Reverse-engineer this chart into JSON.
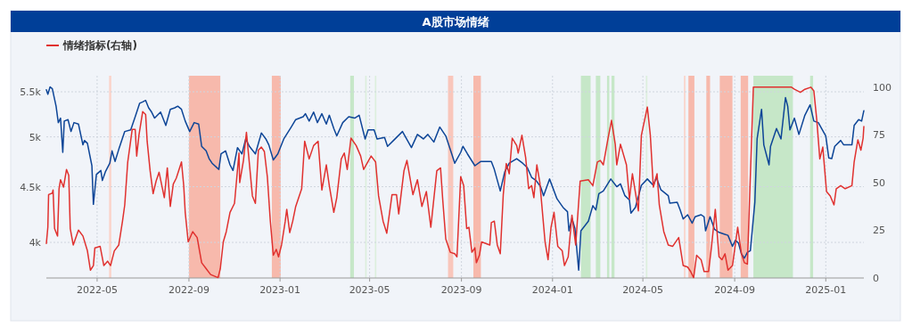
{
  "chart_data": {
    "type": "line",
    "title": "A股市场情绪",
    "log": "y",
    "grid": true,
    "legend": "top left",
    "xlim": [
      "2022-02-22",
      "2025-02-21"
    ],
    "xticks": [
      "2022-05",
      "2022-09",
      "2023-01",
      "2023-05",
      "2023-09",
      "2024-01",
      "2024-05",
      "2024-09",
      "2025-01"
    ],
    "ylim": [
      3710,
      5690
    ],
    "yticks": [
      {
        "value": 4000,
        "label": "4k"
      },
      {
        "value": 4500,
        "label": "4.5k"
      },
      {
        "value": 5000,
        "label": "5k"
      },
      {
        "value": 5500,
        "label": "5.5k"
      }
    ],
    "y2lim": [
      0,
      106
    ],
    "y2ticks": [
      0,
      25,
      50,
      75,
      100
    ],
    "bands": [
      {
        "axis": "x",
        "from": "2022-05-17",
        "to": "2022-05-20",
        "color": "#fbd3ca"
      },
      {
        "axis": "x",
        "from": "2022-09-01",
        "to": "2022-10-13",
        "color": "#f7b9ac"
      },
      {
        "axis": "x",
        "from": "2022-12-21",
        "to": "2023-01-02",
        "color": "#f7b9ac"
      },
      {
        "axis": "x",
        "from": "2023-04-05",
        "to": "2023-04-10",
        "color": "#c6e7c8"
      },
      {
        "axis": "x",
        "from": "2023-04-25",
        "to": "2023-04-27",
        "color": "#dcefdd"
      },
      {
        "axis": "x",
        "from": "2023-05-08",
        "to": "2023-05-10",
        "color": "#dcefdd"
      },
      {
        "axis": "x",
        "from": "2023-08-14",
        "to": "2023-08-21",
        "color": "#f9c6bb"
      },
      {
        "axis": "x",
        "from": "2023-09-17",
        "to": "2023-09-27",
        "color": "#f7b9ac"
      },
      {
        "axis": "x",
        "from": "2024-02-08",
        "to": "2024-02-21",
        "color": "#c6e7c8"
      },
      {
        "axis": "x",
        "from": "2024-02-28",
        "to": "2024-03-05",
        "color": "#c6e7c8"
      },
      {
        "axis": "x",
        "from": "2024-03-14",
        "to": "2024-03-17",
        "color": "#c6e7c8"
      },
      {
        "axis": "x",
        "from": "2024-03-20",
        "to": "2024-03-24",
        "color": "#c6e7c8"
      },
      {
        "axis": "x",
        "from": "2024-05-05",
        "to": "2024-05-07",
        "color": "#dcefdd"
      },
      {
        "axis": "x",
        "from": "2024-06-25",
        "to": "2024-06-27",
        "color": "#fbd3ca"
      },
      {
        "axis": "x",
        "from": "2024-07-01",
        "to": "2024-07-09",
        "color": "#f7b9ac"
      },
      {
        "axis": "x",
        "from": "2024-07-25",
        "to": "2024-07-30",
        "color": "#f7b9ac"
      },
      {
        "axis": "x",
        "from": "2024-08-12",
        "to": "2024-08-29",
        "color": "#f7b9ac"
      },
      {
        "axis": "x",
        "from": "2024-09-09",
        "to": "2024-09-19",
        "color": "#f7b9ac"
      },
      {
        "axis": "x",
        "from": "2024-09-26",
        "to": "2024-11-18",
        "color": "#c6e7c8"
      },
      {
        "axis": "x",
        "from": "2024-12-11",
        "to": "2024-12-15",
        "color": "#c6e7c8"
      }
    ],
    "series": [
      {
        "color": "#0d4597",
        "x": [
          "2022-02-22",
          "2022-02-24",
          "2022-02-27",
          "2022-03-02",
          "2022-03-07",
          "2022-03-10",
          "2022-03-13",
          "2022-03-16",
          "2022-03-18",
          "2022-03-23",
          "2022-03-27",
          "2022-03-31",
          "2022-04-06",
          "2022-04-12",
          "2022-04-14",
          "2022-04-18",
          "2022-04-24",
          "2022-04-26",
          "2022-04-30",
          "2022-05-06",
          "2022-05-08",
          "2022-05-12",
          "2022-05-18",
          "2022-05-21",
          "2022-05-25",
          "2022-05-30",
          "2022-06-07",
          "2022-06-15",
          "2022-06-21",
          "2022-06-27",
          "2022-07-01",
          "2022-07-05",
          "2022-07-09",
          "2022-07-13",
          "2022-07-17",
          "2022-07-25",
          "2022-08-01",
          "2022-08-07",
          "2022-08-13",
          "2022-08-17",
          "2022-08-22",
          "2022-08-27",
          "2022-09-02",
          "2022-09-08",
          "2022-09-14",
          "2022-09-18",
          "2022-09-24",
          "2022-09-28",
          "2022-10-02",
          "2022-10-11",
          "2022-10-14",
          "2022-10-20",
          "2022-10-26",
          "2022-10-30",
          "2022-11-05",
          "2022-11-11",
          "2022-11-16",
          "2022-11-21",
          "2022-11-29",
          "2022-12-07",
          "2022-12-13",
          "2022-12-17",
          "2022-12-23",
          "2022-12-29",
          "2023-01-06",
          "2023-01-16",
          "2023-01-22",
          "2023-02-01",
          "2023-02-04",
          "2023-02-09",
          "2023-02-15",
          "2023-02-20",
          "2023-02-26",
          "2023-03-04",
          "2023-03-08",
          "2023-03-14",
          "2023-03-18",
          "2023-03-26",
          "2023-04-03",
          "2023-04-11",
          "2023-04-17",
          "2023-04-25",
          "2023-04-29",
          "2023-05-07",
          "2023-05-11",
          "2023-05-21",
          "2023-05-25",
          "2023-06-02",
          "2023-06-14",
          "2023-06-26",
          "2023-07-04",
          "2023-07-12",
          "2023-07-18",
          "2023-07-26",
          "2023-08-03",
          "2023-08-11",
          "2023-08-19",
          "2023-08-23",
          "2023-08-31",
          "2023-09-03",
          "2023-09-09",
          "2023-09-19",
          "2023-09-27",
          "2023-10-11",
          "2023-10-15",
          "2023-10-23",
          "2023-10-29",
          "2023-11-04",
          "2023-11-14",
          "2023-11-22",
          "2023-11-28",
          "2023-12-04",
          "2023-12-10",
          "2023-12-16",
          "2023-12-20",
          "2023-12-28",
          "2024-01-07",
          "2024-01-15",
          "2024-01-21",
          "2024-01-23",
          "2024-01-27",
          "2024-01-31",
          "2024-02-05",
          "2024-02-08",
          "2024-02-18",
          "2024-02-24",
          "2024-02-28",
          "2024-03-03",
          "2024-03-09",
          "2024-03-19",
          "2024-03-27",
          "2024-04-01",
          "2024-04-07",
          "2024-04-13",
          "2024-04-15",
          "2024-04-21",
          "2024-04-29",
          "2024-05-07",
          "2024-05-15",
          "2024-05-19",
          "2024-05-25",
          "2024-06-04",
          "2024-06-06",
          "2024-06-16",
          "2024-06-20",
          "2024-06-24",
          "2024-06-30",
          "2024-07-06",
          "2024-07-10",
          "2024-07-18",
          "2024-07-22",
          "2024-07-24",
          "2024-07-30",
          "2024-08-05",
          "2024-08-11",
          "2024-08-17",
          "2024-08-23",
          "2024-08-29",
          "2024-09-02",
          "2024-09-06",
          "2024-09-10",
          "2024-09-14",
          "2024-09-18",
          "2024-09-22",
          "2024-09-28",
          "2024-10-01",
          "2024-10-07",
          "2024-10-10",
          "2024-10-17",
          "2024-10-19",
          "2024-10-27",
          "2024-11-02",
          "2024-11-08",
          "2024-11-11",
          "2024-11-14",
          "2024-11-20",
          "2024-11-26",
          "2024-12-04",
          "2024-12-11",
          "2024-12-16",
          "2024-12-22",
          "2025-01-01",
          "2025-01-05",
          "2025-01-09",
          "2025-01-13",
          "2025-01-21",
          "2025-01-25",
          "2025-02-05",
          "2025-02-08",
          "2025-02-14",
          "2025-02-18",
          "2025-02-21"
        ],
        "values": [
          5523,
          5471,
          5557,
          5535,
          5335,
          5153,
          5202,
          4839,
          5170,
          5186,
          5057,
          5153,
          5137,
          4916,
          4962,
          4932,
          4704,
          4335,
          4617,
          4657,
          4559,
          4643,
          4729,
          4854,
          4747,
          4870,
          5057,
          5074,
          5217,
          5369,
          5384,
          5401,
          5317,
          5269,
          5202,
          5269,
          5122,
          5300,
          5317,
          5335,
          5300,
          5170,
          5057,
          5153,
          5137,
          4901,
          4854,
          4775,
          4729,
          4668,
          4823,
          4854,
          4713,
          4657,
          4888,
          4823,
          4978,
          4901,
          4823,
          5042,
          4978,
          4916,
          4762,
          4823,
          4978,
          5105,
          5186,
          5217,
          5251,
          5170,
          5269,
          5153,
          5251,
          5137,
          5234,
          5089,
          5010,
          5153,
          5217,
          5202,
          5234,
          4978,
          5074,
          5074,
          4978,
          4994,
          4901,
          4962,
          5057,
          4888,
          5026,
          4978,
          5026,
          4946,
          5105,
          5010,
          4823,
          4729,
          4839,
          4901,
          4823,
          4704,
          4747,
          4747,
          4668,
          4459,
          4643,
          4729,
          4775,
          4729,
          4687,
          4590,
          4559,
          4500,
          4415,
          4574,
          4386,
          4308,
          4268,
          4099,
          4210,
          4120,
          3772,
          4099,
          4183,
          4323,
          4284,
          4434,
          4459,
          4574,
          4500,
          4527,
          4415,
          4375,
          4255,
          4308,
          4513,
          4574,
          4513,
          4590,
          4472,
          4415,
          4347,
          4355,
          4284,
          4203,
          4241,
          4166,
          4223,
          4241,
          4223,
          4099,
          4223,
          4112,
          4086,
          4073,
          4060,
          3967,
          4019,
          3994,
          3905,
          3869,
          3917,
          3930,
          4355,
          4978,
          5300,
          4916,
          4713,
          4901,
          5089,
          4978,
          5433,
          5335,
          5074,
          5202,
          5026,
          5234,
          5350,
          5170,
          5153,
          5010,
          4783,
          4775,
          4901,
          4962,
          4916,
          4916,
          5122,
          5186,
          5170,
          5285
        ]
      },
      {
        "name": "情绪指标(右轴)",
        "axis": "y2",
        "color": "#e0312f",
        "x": [
          "2022-02-22",
          "2022-02-24",
          "2022-02-25",
          "2022-03-02",
          "2022-03-03",
          "2022-03-05",
          "2022-03-09",
          "2022-03-11",
          "2022-03-13",
          "2022-03-17",
          "2022-03-21",
          "2022-03-24",
          "2022-03-26",
          "2022-03-30",
          "2022-04-06",
          "2022-04-12",
          "2022-04-18",
          "2022-04-22",
          "2022-04-26",
          "2022-04-28",
          "2022-05-05",
          "2022-05-10",
          "2022-05-15",
          "2022-05-19",
          "2022-05-24",
          "2022-05-30",
          "2022-06-04",
          "2022-06-07",
          "2022-06-11",
          "2022-06-17",
          "2022-06-21",
          "2022-06-23",
          "2022-06-26",
          "2022-07-01",
          "2022-07-05",
          "2022-07-07",
          "2022-07-11",
          "2022-07-15",
          "2022-07-19",
          "2022-07-23",
          "2022-07-30",
          "2022-08-03",
          "2022-08-07",
          "2022-08-11",
          "2022-08-15",
          "2022-08-22",
          "2022-08-25",
          "2022-08-27",
          "2022-08-31",
          "2022-09-06",
          "2022-09-12",
          "2022-09-18",
          "2022-09-24",
          "2022-09-30",
          "2022-10-10",
          "2022-10-13",
          "2022-10-17",
          "2022-10-21",
          "2022-10-26",
          "2022-11-01",
          "2022-11-07",
          "2022-11-08",
          "2022-11-13",
          "2022-11-17",
          "2022-11-20",
          "2022-11-25",
          "2022-11-29",
          "2022-12-03",
          "2022-12-07",
          "2022-12-11",
          "2022-12-15",
          "2022-12-19",
          "2022-12-23",
          "2022-12-27",
          "2022-12-30",
          "2023-01-03",
          "2023-01-08",
          "2023-01-10",
          "2023-01-14",
          "2023-01-18",
          "2023-01-22",
          "2023-01-30",
          "2023-02-03",
          "2023-02-09",
          "2023-02-15",
          "2023-02-21",
          "2023-02-26",
          "2023-03-04",
          "2023-03-08",
          "2023-03-14",
          "2023-03-18",
          "2023-03-24",
          "2023-03-28",
          "2023-04-01",
          "2023-04-06",
          "2023-04-13",
          "2023-04-19",
          "2023-04-23",
          "2023-05-03",
          "2023-05-09",
          "2023-05-13",
          "2023-05-19",
          "2023-05-24",
          "2023-05-31",
          "2023-06-06",
          "2023-06-09",
          "2023-06-16",
          "2023-06-20",
          "2023-06-28",
          "2023-07-04",
          "2023-07-10",
          "2023-07-16",
          "2023-07-22",
          "2023-07-30",
          "2023-08-04",
          "2023-08-07",
          "2023-08-11",
          "2023-08-17",
          "2023-08-23",
          "2023-08-26",
          "2023-08-31",
          "2023-09-04",
          "2023-09-08",
          "2023-09-11",
          "2023-09-15",
          "2023-09-19",
          "2023-09-21",
          "2023-09-25",
          "2023-09-28",
          "2023-10-09",
          "2023-10-11",
          "2023-10-15",
          "2023-10-19",
          "2023-10-23",
          "2023-10-27",
          "2023-10-31",
          "2023-11-04",
          "2023-11-08",
          "2023-11-14",
          "2023-11-16",
          "2023-11-21",
          "2023-11-26",
          "2023-11-30",
          "2023-12-04",
          "2023-12-07",
          "2023-12-11",
          "2023-12-15",
          "2023-12-22",
          "2023-12-26",
          "2023-12-30",
          "2024-01-03",
          "2024-01-08",
          "2024-01-14",
          "2024-01-17",
          "2024-01-22",
          "2024-01-27",
          "2024-02-01",
          "2024-02-07",
          "2024-02-18",
          "2024-02-24",
          "2024-03-01",
          "2024-03-05",
          "2024-03-09",
          "2024-03-15",
          "2024-03-20",
          "2024-03-25",
          "2024-03-27",
          "2024-04-01",
          "2024-04-09",
          "2024-04-13",
          "2024-04-17",
          "2024-04-25",
          "2024-04-29",
          "2024-05-07",
          "2024-05-11",
          "2024-05-15",
          "2024-05-20",
          "2024-05-23",
          "2024-05-29",
          "2024-06-04",
          "2024-06-10",
          "2024-06-18",
          "2024-06-24",
          "2024-06-30",
          "2024-07-04",
          "2024-07-08",
          "2024-07-12",
          "2024-07-18",
          "2024-07-22",
          "2024-07-28",
          "2024-08-01",
          "2024-08-06",
          "2024-08-11",
          "2024-08-15",
          "2024-08-19",
          "2024-08-23",
          "2024-08-29",
          "2024-09-05",
          "2024-09-10",
          "2024-09-14",
          "2024-09-18",
          "2024-09-26",
          "2024-11-16",
          "2024-11-20",
          "2024-11-28",
          "2024-12-04",
          "2024-12-12",
          "2024-12-16",
          "2024-12-20",
          "2024-12-24",
          "2024-12-28",
          "2025-01-02",
          "2025-01-07",
          "2025-01-12",
          "2025-01-15",
          "2025-01-21",
          "2025-01-27",
          "2025-02-05",
          "2025-02-08",
          "2025-02-13",
          "2025-02-17",
          "2025-02-20",
          "2025-02-21"
        ],
        "values": [
          18.1,
          26.6,
          43.7,
          44.5,
          46.1,
          25.9,
          22.0,
          46.8,
          51.5,
          47.6,
          56.9,
          53.8,
          25.9,
          17.3,
          25.1,
          22.0,
          14.2,
          4.1,
          6.5,
          15.8,
          16.6,
          6.5,
          8.8,
          6.5,
          14.2,
          17.3,
          29.8,
          38.3,
          60.8,
          77.9,
          77.9,
          63.9,
          74.8,
          87.2,
          85.7,
          71.7,
          56.2,
          44.2,
          50.8,
          55.4,
          42.1,
          57.7,
          37.5,
          49.2,
          52.3,
          60.8,
          48.4,
          34.4,
          18.9,
          24.3,
          21.2,
          8.0,
          4.9,
          1.8,
          0.2,
          4.9,
          18.9,
          24.3,
          34.4,
          39.1,
          65.5,
          50.0,
          61.6,
          76.3,
          63.9,
          43.0,
          39.1,
          67.0,
          68.6,
          66.3,
          53.1,
          29.8,
          11.9,
          15.0,
          11.1,
          17.3,
          29.8,
          36.0,
          23.8,
          29.8,
          37.5,
          46.8,
          71.7,
          62.4,
          69.4,
          71.7,
          46.1,
          59.3,
          48.4,
          34.4,
          42.1,
          62.4,
          65.5,
          56.9,
          73.3,
          69.4,
          63.9,
          56.9,
          63.9,
          60.8,
          43.0,
          29.8,
          23.5,
          43.7,
          43.7,
          33.6,
          56.2,
          61.6,
          43.7,
          51.5,
          37.5,
          45.3,
          26.6,
          56.2,
          57.7,
          40.6,
          20.4,
          13.5,
          12.7,
          11.1,
          53.1,
          48.4,
          25.9,
          26.6,
          13.5,
          15.8,
          8.0,
          11.9,
          18.9,
          17.3,
          29.0,
          29.8,
          17.3,
          12.7,
          43.7,
          60.0,
          54.6,
          73.3,
          69.4,
          65.5,
          74.8,
          63.1,
          46.8,
          48.4,
          42.1,
          59.3,
          50.0,
          18.9,
          9.6,
          26.6,
          34.4,
          16.6,
          14.2,
          6.5,
          11.1,
          32.9,
          17.3,
          50.8,
          51.5,
          48.4,
          60.8,
          61.6,
          59.3,
          72.4,
          82.6,
          70.1,
          59.3,
          70.1,
          59.3,
          41.4,
          54.6,
          35.2,
          74.8,
          89.6,
          74.8,
          47.6,
          54.6,
          38.3,
          24.3,
          17.3,
          16.6,
          21.2,
          6.5,
          5.7,
          3.4,
          0.2,
          11.9,
          9.6,
          3.4,
          3.4,
          16.6,
          36.0,
          11.1,
          9.6,
          12.7,
          4.1,
          6.5,
          26.6,
          12.7,
          8.0,
          7.3,
          100,
          100,
          98.9,
          97.3,
          98.9,
          100,
          98.1,
          82.6,
          62.4,
          68.6,
          45.3,
          43.0,
          38.3,
          46.8,
          48.4,
          46.8,
          48.4,
          60.8,
          72.4,
          67.0,
          73.3,
          79.4
        ]
      }
    ]
  }
}
